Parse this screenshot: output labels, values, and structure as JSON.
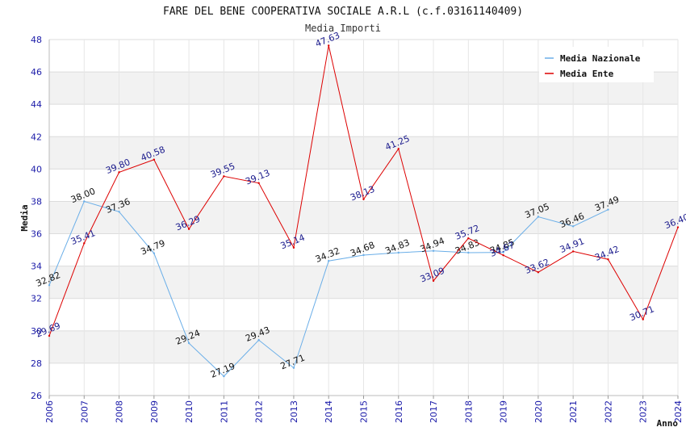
{
  "chart_data": {
    "type": "line",
    "title": "FARE DEL BENE COOPERATIVA SOCIALE A.R.L (c.f.03161140409)",
    "subtitle": "Media Importi",
    "xlabel": "Anno",
    "ylabel": "Media",
    "ylim": [
      26,
      48
    ],
    "yticks": [
      26,
      28,
      30,
      32,
      34,
      36,
      38,
      40,
      42,
      44,
      46,
      48
    ],
    "x": [
      "2006",
      "2007",
      "2008",
      "2009",
      "2010",
      "2011",
      "2012",
      "2013",
      "2014",
      "2015",
      "2016",
      "2017",
      "2018",
      "2019",
      "2020",
      "2021",
      "2022",
      "2023",
      "2024"
    ],
    "grid": true,
    "legend_position": "top-right",
    "series": [
      {
        "name": "Media Nazionale",
        "color": "#6aaee8",
        "label_color": "#111111",
        "values": [
          32.82,
          38.0,
          37.36,
          34.79,
          29.24,
          27.19,
          29.43,
          27.71,
          34.32,
          34.68,
          34.83,
          34.94,
          34.83,
          34.85,
          37.05,
          36.46,
          37.49,
          null,
          null
        ],
        "labels": [
          "32.82",
          "38.00",
          "37.36",
          "34.79",
          "29.24",
          "27.19",
          "29.43",
          "27.71",
          "34.32",
          "34.68",
          "34.83",
          "34.94",
          "34.83",
          "34.85",
          "37.05",
          "36.46",
          "37.49",
          null,
          null
        ]
      },
      {
        "name": "Media Ente",
        "color": "#dd0000",
        "label_color": "#1a1a8c",
        "values": [
          29.69,
          35.41,
          39.8,
          40.58,
          36.29,
          39.55,
          39.13,
          35.14,
          47.63,
          38.13,
          41.25,
          33.09,
          35.72,
          34.67,
          33.62,
          34.91,
          34.42,
          30.71,
          36.4
        ],
        "labels": [
          "29.69",
          "35.41",
          "39.80",
          "40.58",
          "36.29",
          "39.55",
          "39.13",
          "35.14",
          "47.63",
          "38.13",
          "41.25",
          "33.09",
          "35.72",
          "34.67",
          "33.62",
          "34.91",
          "34.42",
          "30.71",
          "36.40"
        ]
      }
    ]
  }
}
